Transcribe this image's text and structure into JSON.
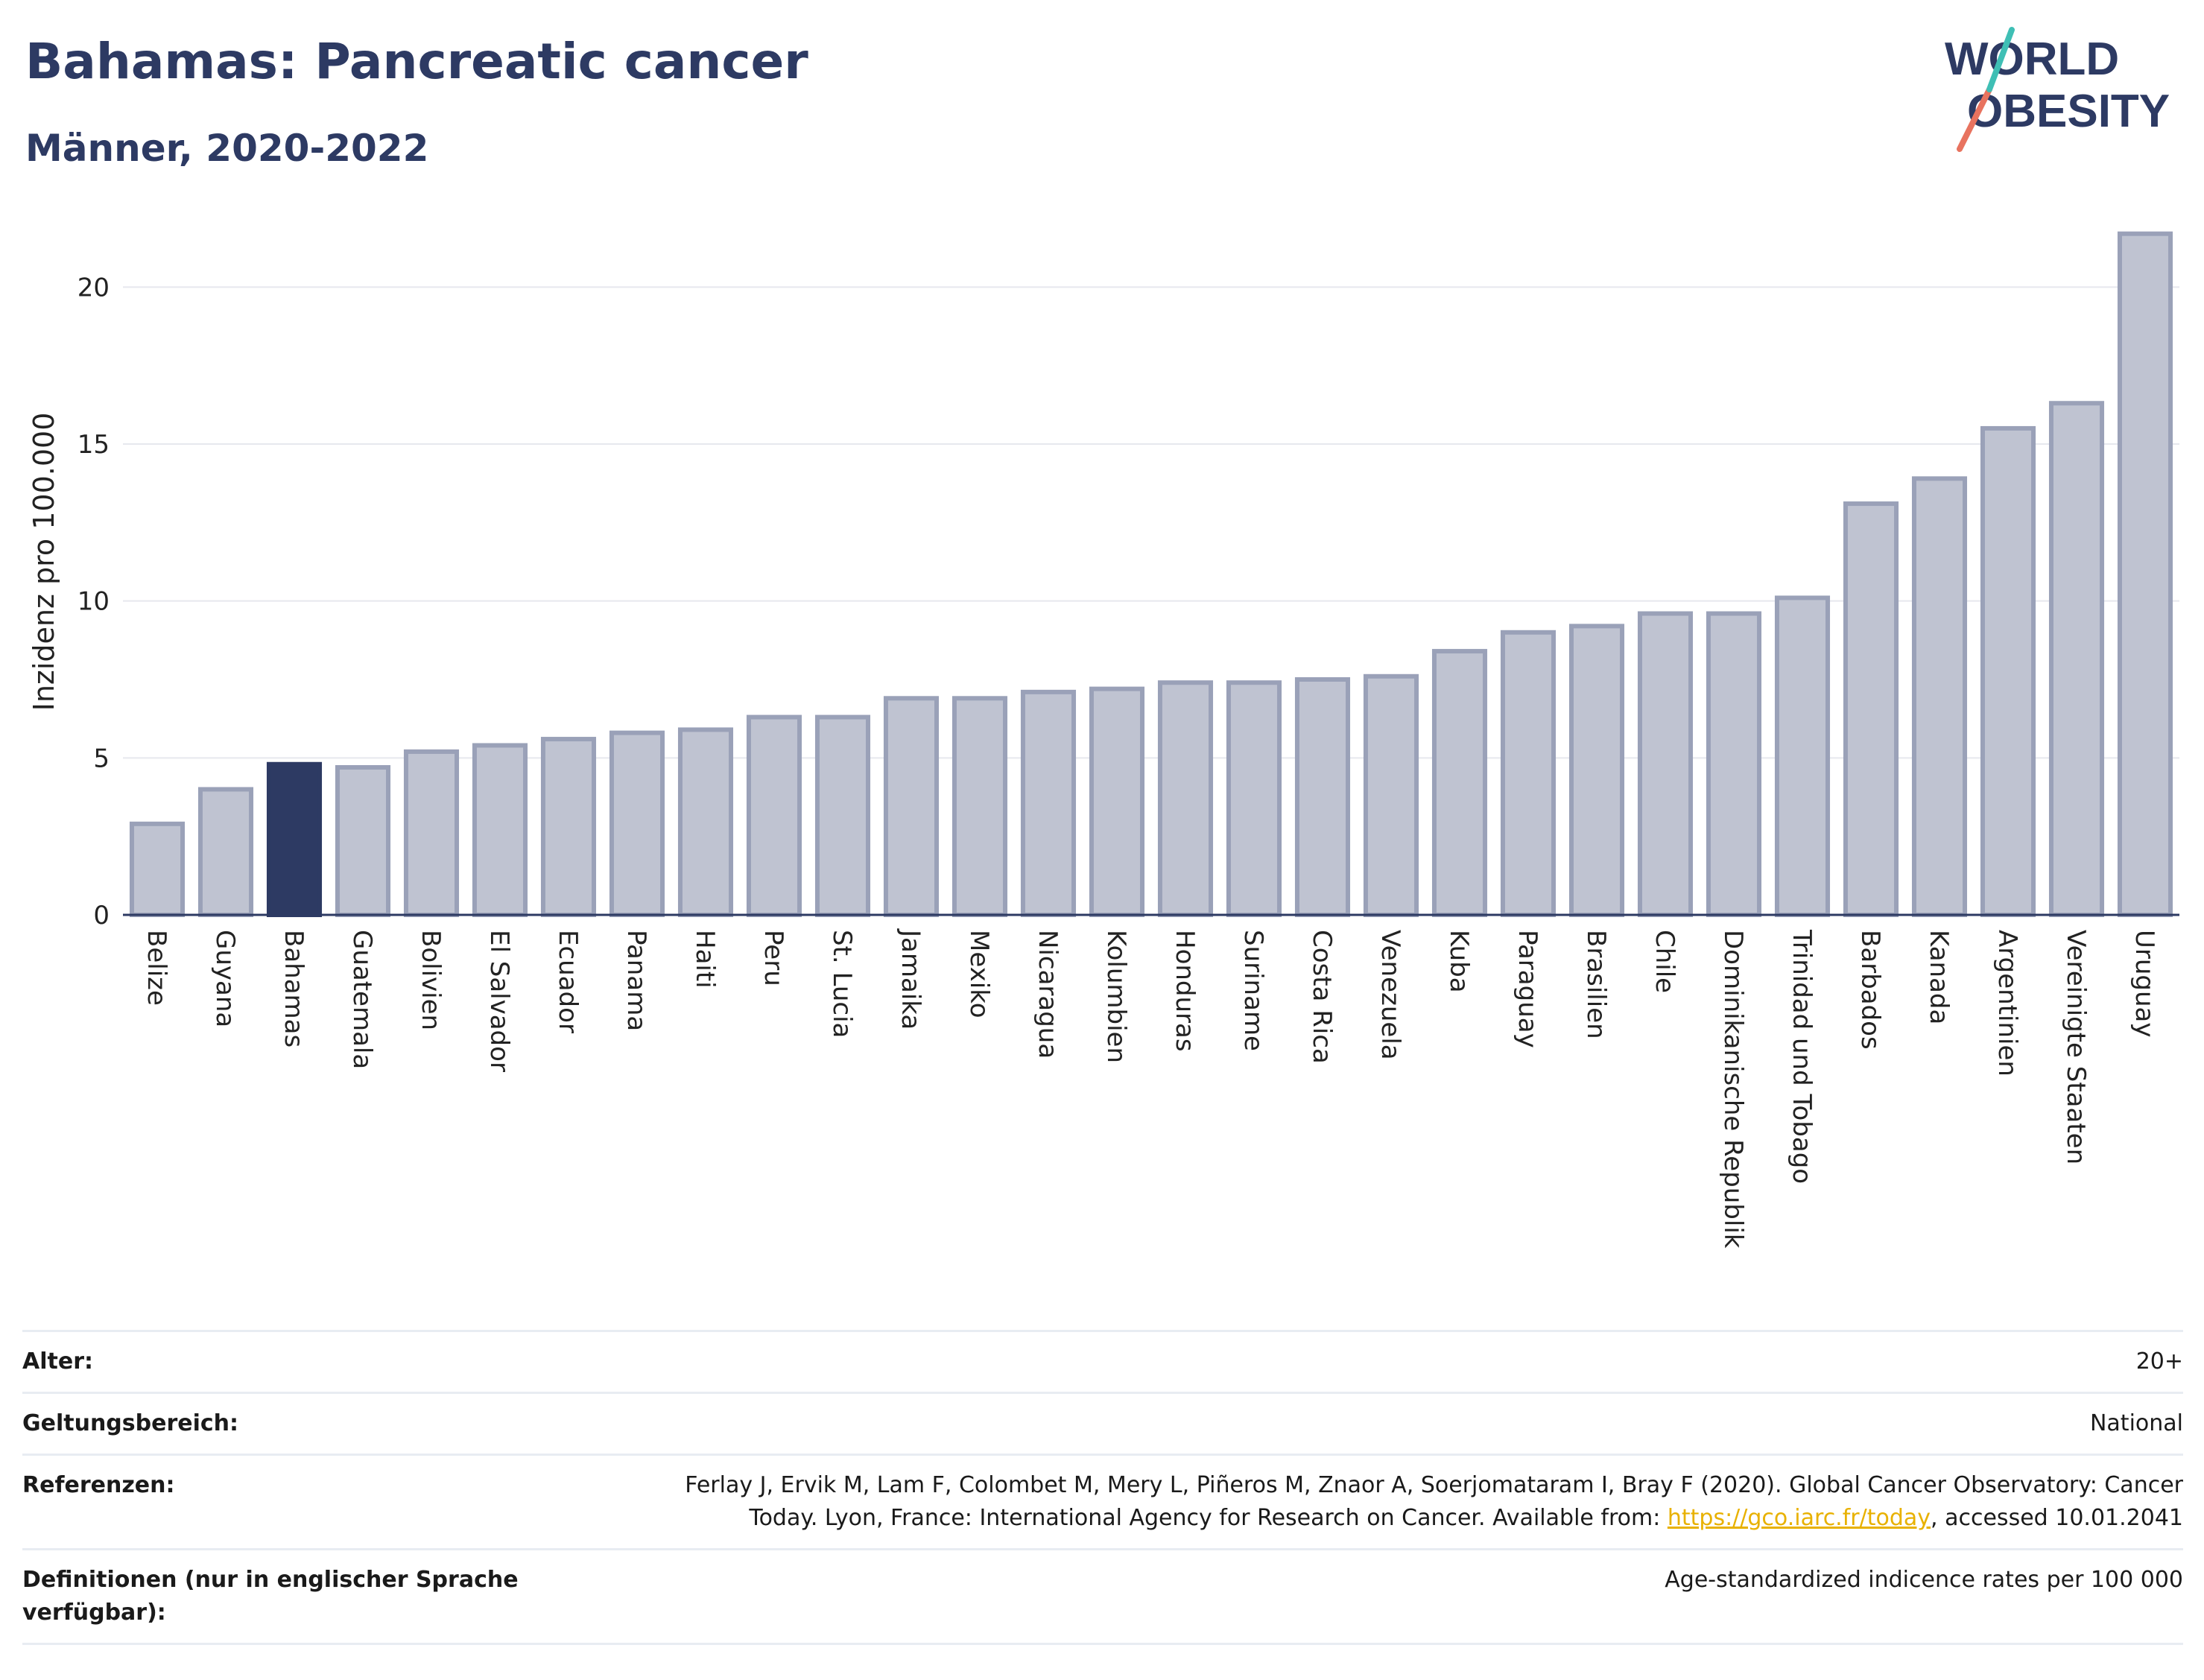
{
  "header": {
    "title": "Bahamas: Pancreatic cancer",
    "subtitle": "Männer, 2020-2022"
  },
  "logo": {
    "line1": "WORLD",
    "line2": "OBESITY"
  },
  "colors": {
    "highlight": "#2d3a63",
    "bar": "#bfc3d1",
    "bar_outline": "#9aa1b8",
    "title": "#2d3a63",
    "link": "#e8b100"
  },
  "chart_data": {
    "type": "bar",
    "ylabel": "Inzidenz pro 100.000",
    "ylim": [
      0,
      22.5
    ],
    "yticks": [
      0,
      5,
      10,
      15,
      20
    ],
    "grid": true,
    "highlight": "Bahamas",
    "categories": [
      "Belize",
      "Guyana",
      "Bahamas",
      "Guatemala",
      "Bolivien",
      "El Salvador",
      "Ecuador",
      "Panama",
      "Haiti",
      "Peru",
      "St. Lucia",
      "Jamaika",
      "Mexiko",
      "Nicaragua",
      "Kolumbien",
      "Honduras",
      "Suriname",
      "Costa Rica",
      "Venezuela",
      "Kuba",
      "Paraguay",
      "Brasilien",
      "Chile",
      "Dominikanische Republik",
      "Trinidad und Tobago",
      "Barbados",
      "Kanada",
      "Argentinien",
      "Vereinigte Staaten",
      "Uruguay"
    ],
    "values": [
      2.9,
      4.0,
      4.8,
      4.7,
      5.2,
      5.4,
      5.6,
      5.8,
      5.9,
      6.3,
      6.3,
      6.9,
      6.9,
      7.1,
      7.2,
      7.4,
      7.4,
      7.5,
      7.6,
      8.4,
      9.0,
      9.2,
      9.6,
      9.6,
      10.1,
      13.1,
      13.9,
      15.5,
      16.3,
      21.7
    ]
  },
  "meta": [
    {
      "label": "Alter:",
      "value": "20+"
    },
    {
      "label": "Geltungsbereich:",
      "value": "National"
    },
    {
      "label": "Referenzen:",
      "value_pre": "Ferlay J, Ervik M, Lam F, Colombet M, Mery L, Piñeros M, Znaor A, Soerjomataram I, Bray F (2020). Global Cancer Observatory: Cancer Today. Lyon, France: International Agency for Research on Cancer. Available from: ",
      "link": "https://gco.iarc.fr/today",
      "value_post": ", accessed 10.01.2041"
    },
    {
      "label": "Definitionen (nur in englischer Sprache\nverfügbar):",
      "value": "Age-standardized indicence rates per 100 000"
    }
  ]
}
